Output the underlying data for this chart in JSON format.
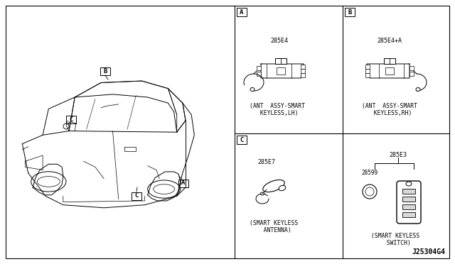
{
  "bg_color": "#ffffff",
  "border_color": "#000000",
  "diagram_code": "J25304G4",
  "part_A_code": "285E4",
  "part_B_code": "285E4+A",
  "part_C_code": "285E7",
  "part_D_code": "285E3",
  "part_D2_code": "28599",
  "part_A_name": "(ANT  ASSY-SMART\n KEYLESS,LH)",
  "part_B_name": "(ANT  ASSY-SMART\n  KEYLESS,RH)",
  "part_C_name": "(SMART KEYLESS\n  ANTENNA)",
  "part_D_name": "(SMART KEYLESS\n  SWITCH)",
  "line_color": "#000000",
  "text_color": "#000000",
  "font_size_label": 6.5,
  "font_size_code": 6.0,
  "font_size_name": 5.8,
  "font_size_diagram_code": 7.0
}
